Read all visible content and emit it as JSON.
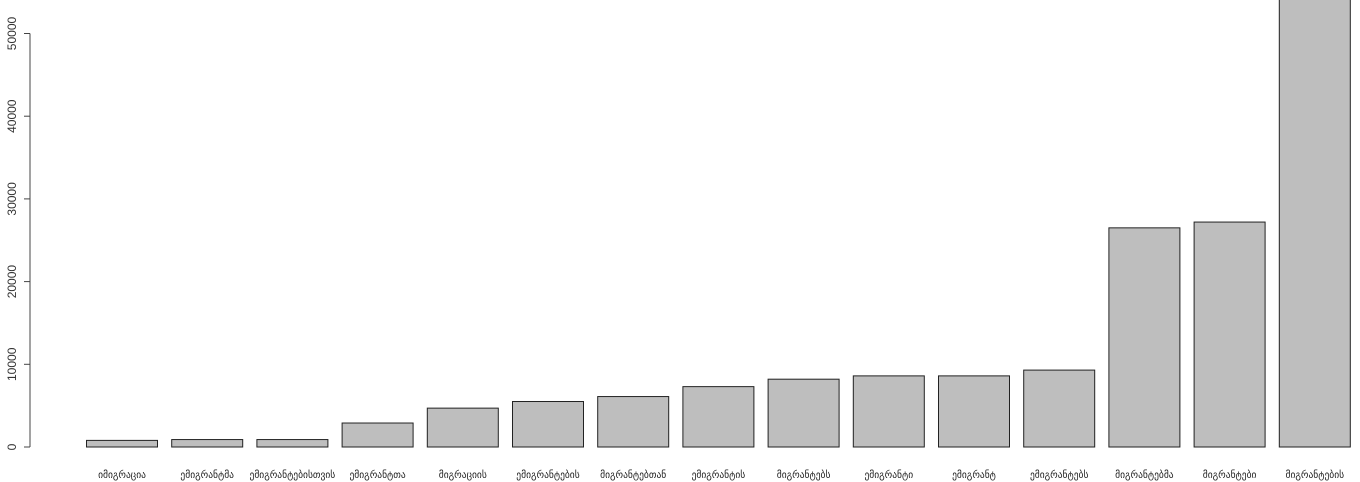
{
  "chart_data": {
    "type": "bar",
    "title": "",
    "xlabel": "",
    "ylabel": "",
    "ylim": [
      0,
      55000
    ],
    "yticks": [
      0,
      10000,
      20000,
      30000,
      40000,
      50000
    ],
    "ytick_labels": [
      "0",
      "10000",
      "20000",
      "30000",
      "40000",
      "50000"
    ],
    "bar_color": "#bebebe",
    "categories": [
      "იმიგრაცია",
      "ემიგრანტმა",
      "ემიგრანტებისთვის",
      "ემიგრანტთა",
      "მიგრაციის",
      "ემიგრანტების",
      "მიგრანტებთან",
      "ემიგრანტის",
      "მიგრანტებს",
      "ემიგრანტი",
      "ემიგრანტ",
      "ემიგრანტებს",
      "მიგრანტებმა",
      "მიგრანტები",
      "მიგრანტების"
    ],
    "values": [
      800,
      900,
      900,
      2900,
      4700,
      5500,
      6100,
      7300,
      8200,
      8600,
      8600,
      9300,
      26500,
      27200,
      55000
    ]
  }
}
